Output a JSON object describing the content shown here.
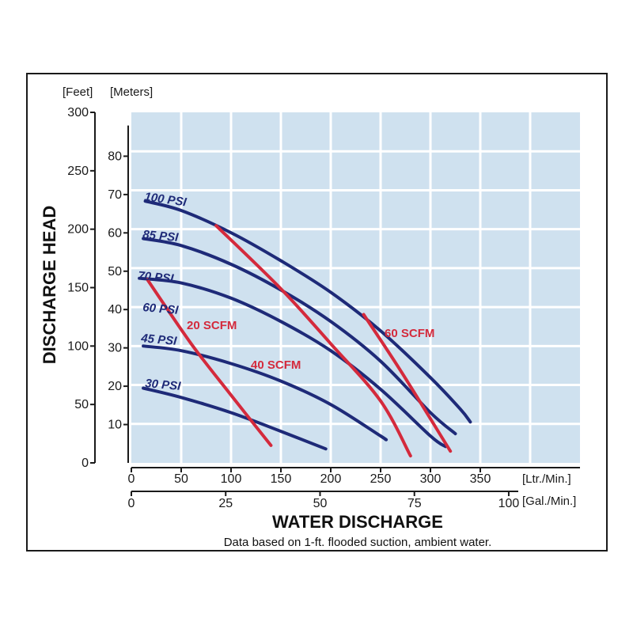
{
  "chart_data": {
    "type": "line",
    "title": "",
    "xlabel": "WATER DISCHARGE",
    "ylabel": "DISCHARGE HEAD",
    "footnote": "Data based on 1-ft. flooded suction, ambient water.",
    "grid": true,
    "x_primary": {
      "unit": "[Ltr./Min.]",
      "ticks": [
        0,
        50,
        100,
        150,
        200,
        250,
        300,
        350
      ],
      "range": [
        0,
        450
      ]
    },
    "x_secondary": {
      "unit": "[Gal./Min.]",
      "ticks": [
        0,
        25,
        50,
        75,
        100
      ]
    },
    "y_feet": {
      "unit": "[Feet]",
      "ticks": [
        0,
        50,
        100,
        150,
        200,
        250,
        300
      ],
      "range": [
        0,
        300
      ]
    },
    "y_meters": {
      "unit": "[Meters]",
      "ticks": [
        10,
        20,
        30,
        40,
        50,
        60,
        70,
        80
      ]
    },
    "series": [
      {
        "name": "100 PSI",
        "kind": "pressure",
        "label": "100 PSI",
        "color": "#1e2a78",
        "points": [
          [
            14,
            224
          ],
          [
            50,
            216
          ],
          [
            100,
            197
          ],
          [
            150,
            173
          ],
          [
            200,
            146
          ],
          [
            250,
            113
          ],
          [
            300,
            73
          ],
          [
            330,
            46
          ],
          [
            340,
            35
          ]
        ]
      },
      {
        "name": "85 PSI",
        "kind": "pressure",
        "label": "85 PSI",
        "color": "#1e2a78",
        "points": [
          [
            12,
            192
          ],
          [
            50,
            186
          ],
          [
            100,
            170
          ],
          [
            150,
            148
          ],
          [
            200,
            121
          ],
          [
            250,
            87
          ],
          [
            300,
            43
          ],
          [
            325,
            25
          ]
        ]
      },
      {
        "name": "70 PSI",
        "kind": "pressure",
        "label": "70 PSI",
        "color": "#1e2a78",
        "points": [
          [
            8,
            158
          ],
          [
            50,
            154
          ],
          [
            100,
            141
          ],
          [
            150,
            121
          ],
          [
            200,
            96
          ],
          [
            250,
            63
          ],
          [
            300,
            23
          ],
          [
            315,
            14
          ]
        ]
      },
      {
        "name": "45 PSI",
        "kind": "pressure",
        "label": "45 PSI",
        "color": "#1e2a78",
        "points": [
          [
            12,
            100
          ],
          [
            50,
            96
          ],
          [
            100,
            85
          ],
          [
            150,
            70
          ],
          [
            200,
            50
          ],
          [
            250,
            23
          ],
          [
            255,
            20
          ]
        ]
      },
      {
        "name": "30 PSI",
        "kind": "pressure",
        "label": "30 PSI",
        "color": "#1e2a78",
        "points": [
          [
            12,
            64
          ],
          [
            50,
            56
          ],
          [
            100,
            43
          ],
          [
            150,
            27
          ],
          [
            195,
            12
          ]
        ]
      },
      {
        "name": "20 SCFM",
        "kind": "air",
        "label": "20 SCFM",
        "color": "#d42a3c",
        "points": [
          [
            16,
            157
          ],
          [
            60,
            102
          ],
          [
            100,
            58
          ],
          [
            140,
            15
          ]
        ]
      },
      {
        "name": "40 SCFM",
        "kind": "air",
        "label": "40 SCFM",
        "color": "#d42a3c",
        "points": [
          [
            85,
            203
          ],
          [
            150,
            149
          ],
          [
            200,
            102
          ],
          [
            250,
            53
          ],
          [
            280,
            6
          ]
        ]
      },
      {
        "name": "60 SCFM",
        "kind": "air",
        "label": "60 SCFM",
        "color": "#d42a3c",
        "points": [
          [
            233,
            127
          ],
          [
            270,
            79
          ],
          [
            320,
            10
          ]
        ]
      }
    ],
    "extra_labels": [
      {
        "text": "60 PSI",
        "color": "#1e2a78"
      }
    ]
  }
}
